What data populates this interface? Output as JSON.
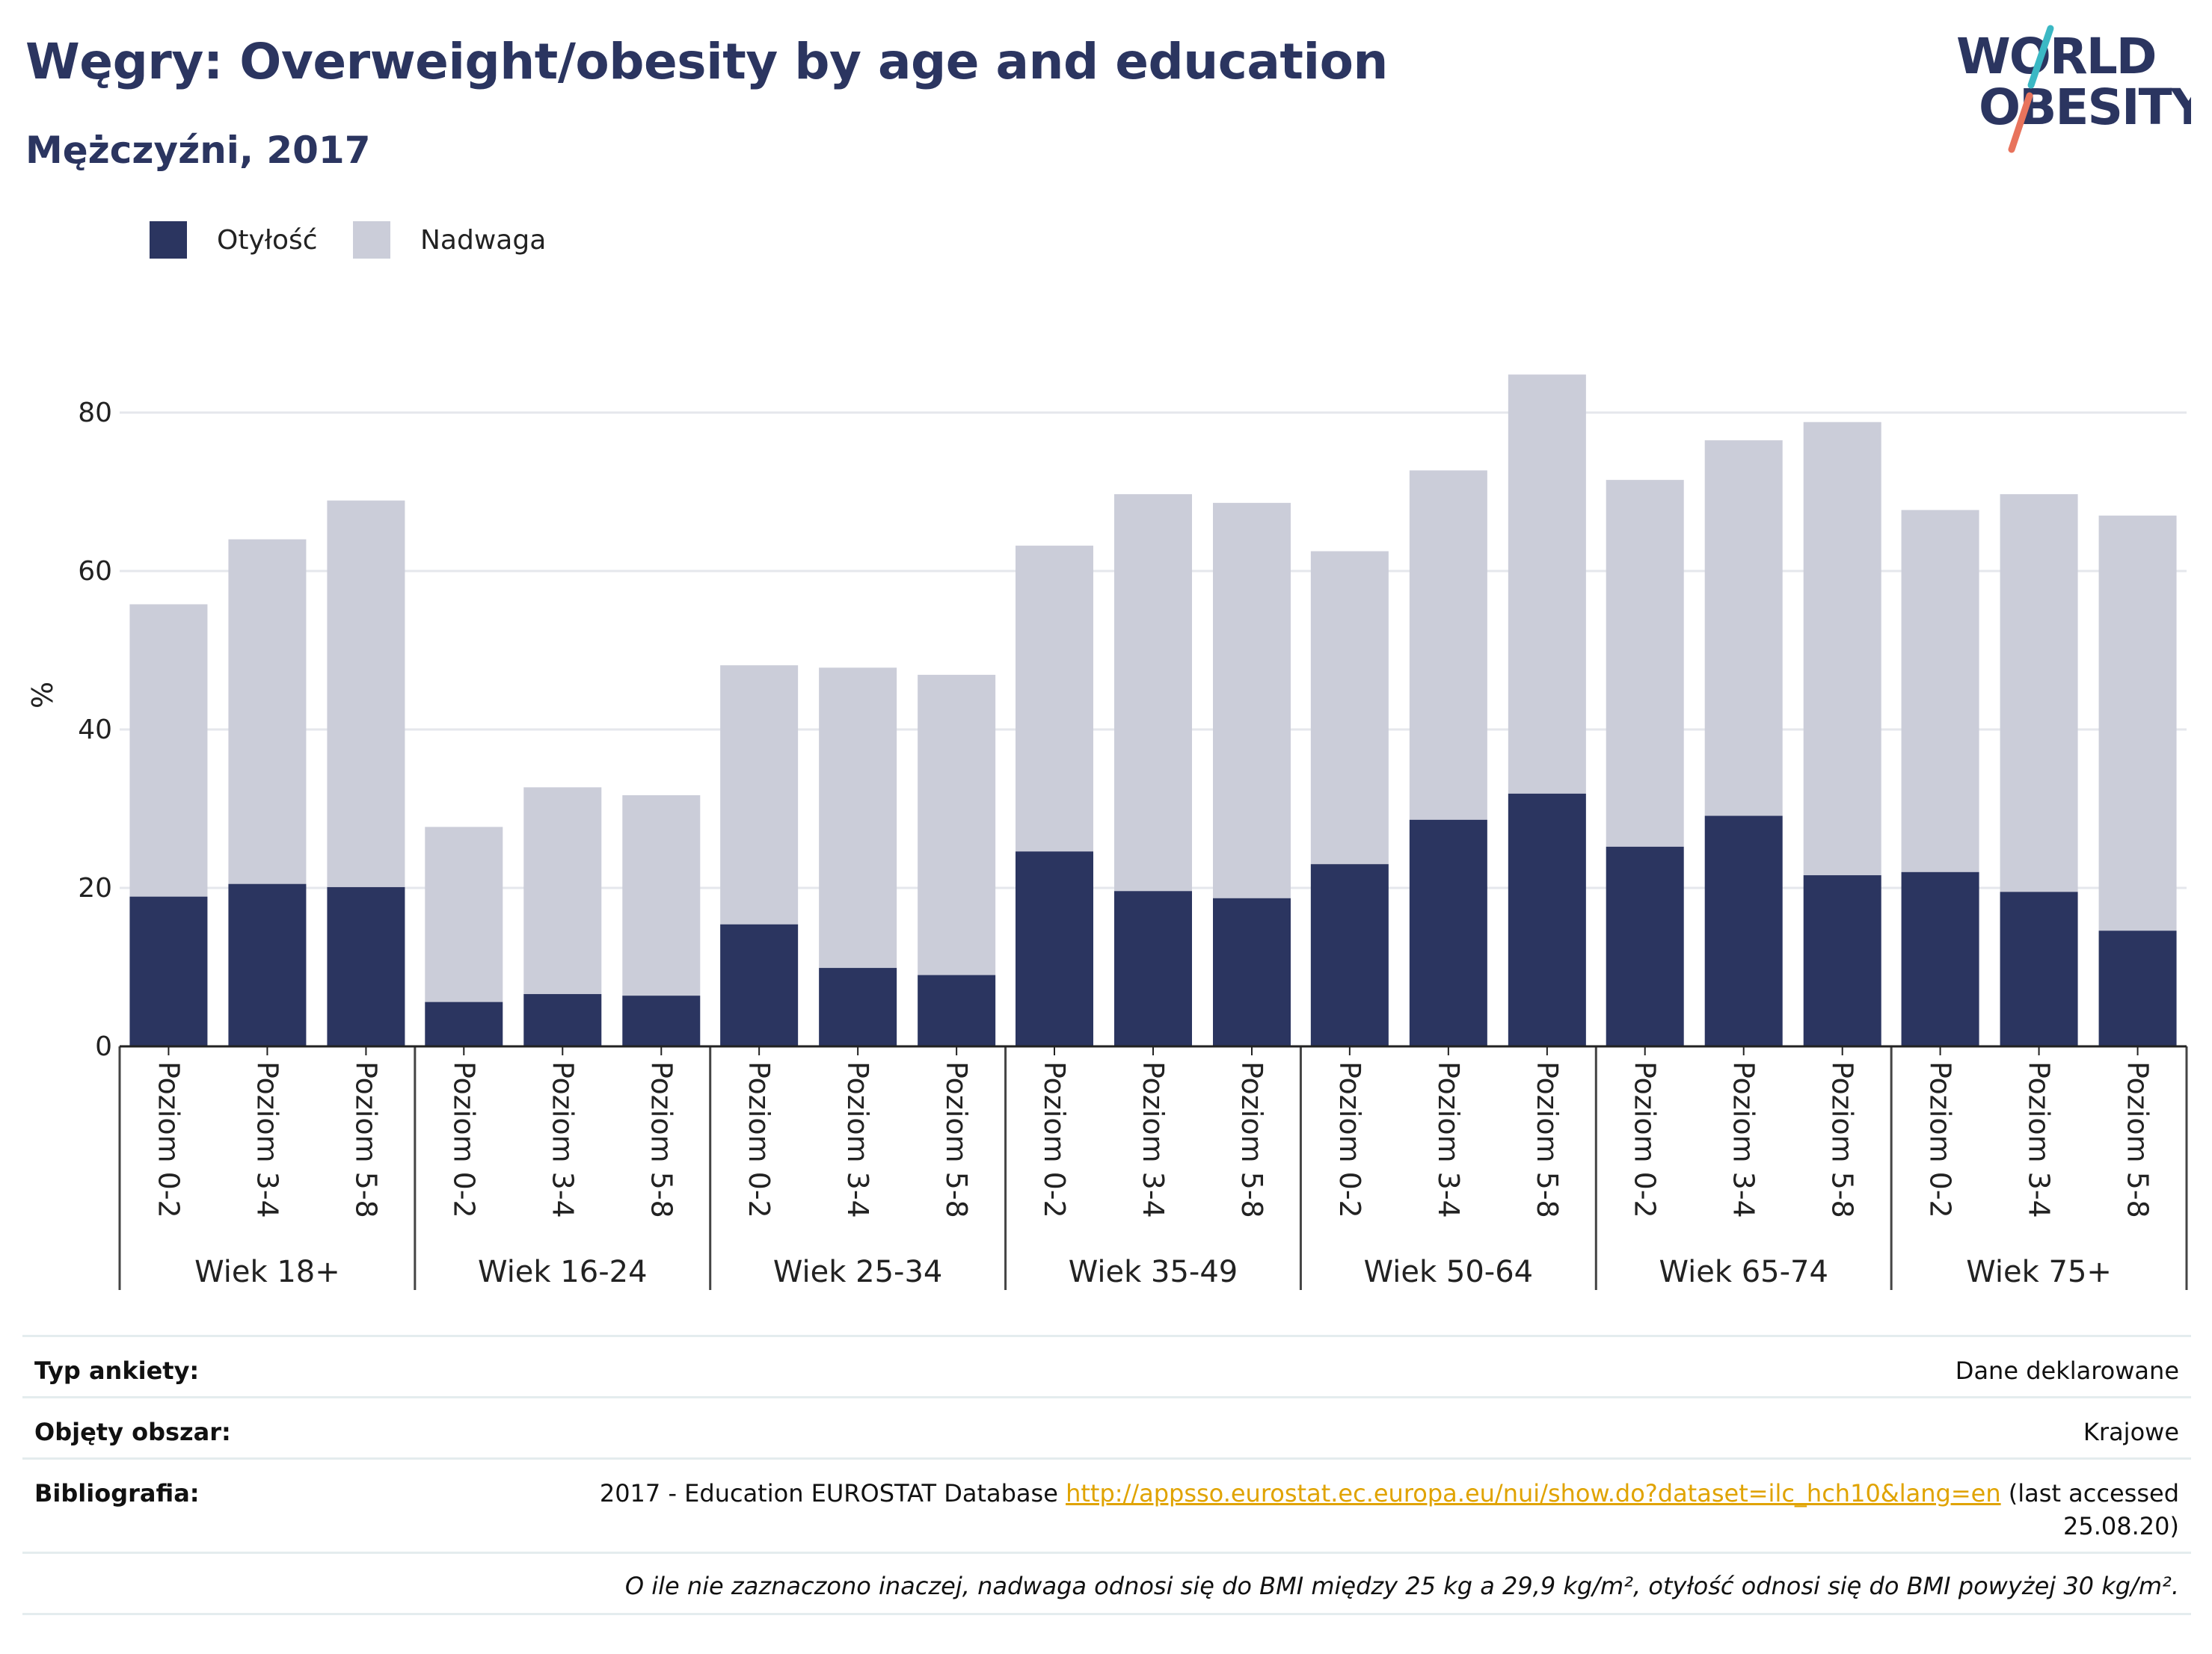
{
  "header": {
    "title": "Węgry: Overweight/obesity by age and education",
    "subtitle": "Mężczyźni, 2017",
    "logo_line1": "WORLD",
    "logo_line2": "OBESITY"
  },
  "legend": [
    {
      "label": "Otyłość",
      "color": "#2b3560"
    },
    {
      "label": "Nadwaga",
      "color": "#cbcdd9"
    }
  ],
  "chart_data": {
    "type": "bar",
    "stacked": true,
    "ylabel": "%",
    "ylim": [
      0,
      86
    ],
    "yticks": [
      0,
      20,
      40,
      60,
      80
    ],
    "grid": true,
    "legend_position": "top-left",
    "groups": [
      {
        "label": "Wiek 18+",
        "categories": [
          "Poziom 0-2",
          "Poziom 3-4",
          "Poziom 5-8"
        ],
        "otylosc": [
          18.9,
          20.5,
          20.1
        ],
        "total": [
          55.8,
          64.0,
          68.9
        ]
      },
      {
        "label": "Wiek 16-24",
        "categories": [
          "Poziom 0-2",
          "Poziom 3-4",
          "Poziom 5-8"
        ],
        "otylosc": [
          5.6,
          6.6,
          6.4
        ],
        "total": [
          27.7,
          32.7,
          31.7
        ]
      },
      {
        "label": "Wiek 25-34",
        "categories": [
          "Poziom 0-2",
          "Poziom 3-4",
          "Poziom 5-8"
        ],
        "otylosc": [
          15.4,
          9.9,
          9.0
        ],
        "total": [
          48.1,
          47.8,
          46.9
        ]
      },
      {
        "label": "Wiek 35-49",
        "categories": [
          "Poziom 0-2",
          "Poziom 3-4",
          "Poziom 5-8"
        ],
        "otylosc": [
          24.6,
          19.6,
          18.7
        ],
        "total": [
          63.2,
          69.7,
          68.6
        ]
      },
      {
        "label": "Wiek 50-64",
        "categories": [
          "Poziom 0-2",
          "Poziom 3-4",
          "Poziom 5-8"
        ],
        "otylosc": [
          23.0,
          28.6,
          31.9
        ],
        "total": [
          62.5,
          72.7,
          84.8
        ]
      },
      {
        "label": "Wiek 65-74",
        "categories": [
          "Poziom 0-2",
          "Poziom 3-4",
          "Poziom 5-8"
        ],
        "otylosc": [
          25.2,
          29.1,
          21.6
        ],
        "total": [
          71.5,
          76.5,
          78.8
        ]
      },
      {
        "label": "Wiek 75+",
        "categories": [
          "Poziom 0-2",
          "Poziom 3-4",
          "Poziom 5-8"
        ],
        "otylosc": [
          22.0,
          19.5,
          14.6
        ],
        "total": [
          67.7,
          69.7,
          67.0
        ]
      }
    ]
  },
  "meta": {
    "survey_label": "Typ ankiety:",
    "survey_value": "Dane deklarowane",
    "area_label": "Objęty obszar:",
    "area_value": "Krajowe",
    "bib_label": "Bibliografia:",
    "bib_text": "2017 - Education EUROSTAT Database ",
    "bib_link": "http://appsso.eurostat.ec.europa.eu/nui/show.do?dataset=ilc_hch10&lang=en",
    "bib_suffix": " (last accessed",
    "bib_date": "25.08.20)",
    "note": "O ile nie zaznaczono inaczej, nadwaga odnosi się do BMI między 25 kg a 29,9 kg/m², otyłość odnosi się do BMI powyżej 30 kg/m²."
  }
}
